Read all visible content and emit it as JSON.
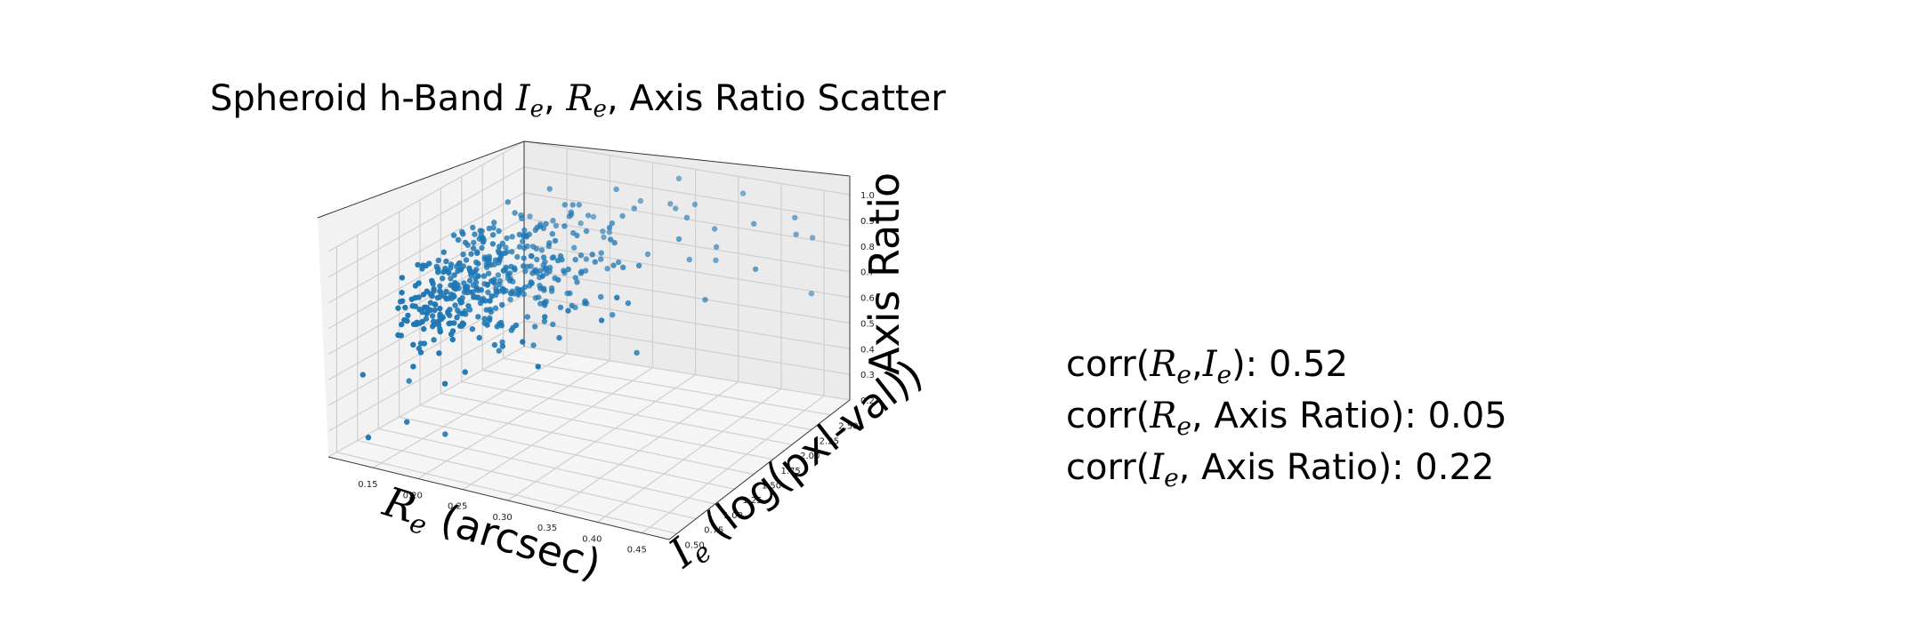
{
  "chart_data": {
    "type": "scatter",
    "projection": "3d",
    "title": "Spheroid h-Band I_e, R_e, Axis Ratio Scatter",
    "title_parts": {
      "prefix": "Spheroid h-Band ",
      "ie_main": "I",
      "ie_sub": "e",
      "sep1": ", ",
      "re_main": "R",
      "re_sub": "e",
      "suffix": ", Axis Ratio Scatter"
    },
    "xlabel": "R_e (arcsec)",
    "xlabel_parts": {
      "main": "R",
      "sub": "e",
      "rest": " (arcsec)"
    },
    "ylabel": "I_e (log(pxl-val))",
    "ylabel_parts": {
      "main": "I",
      "sub": "e",
      "rest": " (log(pxl-val))"
    },
    "zlabel": "Axis Ratio",
    "xlim": [
      0.1,
      0.48
    ],
    "ylim": [
      0.4,
      2.75
    ],
    "zlim": [
      0.2,
      1.0
    ],
    "x_ticks": [
      "0.15",
      "0.20",
      "0.25",
      "0.30",
      "0.35",
      "0.40",
      "0.45"
    ],
    "y_ticks": [
      "0.50",
      "0.75",
      "1.00",
      "1.25",
      "1.50",
      "1.75",
      "2.00",
      "2.25",
      "2.50"
    ],
    "z_ticks": [
      "0.2",
      "0.3",
      "0.4",
      "0.5",
      "0.6",
      "0.7",
      "0.8",
      "0.9",
      "1.0"
    ],
    "grid": true,
    "marker_color": "#1f77b4",
    "generated_points": {
      "count": 460,
      "x_center": 0.17,
      "x_spread": 0.05,
      "y_center": 1.1,
      "y_spread": 0.45,
      "z_center": 0.82,
      "z_spread": 0.1
    },
    "points": [
      [
        0.14,
        0.45,
        0.3
      ],
      [
        0.18,
        0.95,
        0.25
      ],
      [
        0.13,
        1.05,
        0.4
      ],
      [
        0.16,
        0.7,
        0.33
      ],
      [
        0.12,
        0.6,
        0.5
      ],
      [
        0.15,
        2.3,
        0.82
      ],
      [
        0.2,
        2.55,
        0.8
      ],
      [
        0.25,
        2.6,
        0.88
      ],
      [
        0.3,
        2.5,
        0.9
      ],
      [
        0.35,
        2.45,
        0.86
      ],
      [
        0.4,
        2.4,
        0.92
      ],
      [
        0.28,
        2.2,
        0.95
      ],
      [
        0.22,
        2.1,
        0.78
      ],
      [
        0.33,
        2.35,
        0.75
      ],
      [
        0.45,
        2.6,
        0.85
      ],
      [
        0.38,
        2.0,
        0.7
      ],
      [
        0.26,
        1.8,
        0.65
      ],
      [
        0.31,
        1.6,
        0.68
      ],
      [
        0.42,
        2.2,
        0.8
      ],
      [
        0.19,
        1.5,
        0.58
      ],
      [
        0.24,
        1.9,
        0.6
      ],
      [
        0.29,
        2.65,
        0.98
      ],
      [
        0.36,
        2.7,
        0.95
      ],
      [
        0.44,
        2.5,
        0.88
      ]
    ]
  },
  "stats": {
    "lines": [
      {
        "text": "corr(R_e,I_e): 0.52",
        "pre": "corr(",
        "a_main": "R",
        "a_sub": "e",
        "mid": ",",
        "b_main": "I",
        "b_sub": "e",
        "post": "): 0.52"
      },
      {
        "text": "corr(R_e, Axis Ratio): 0.05",
        "pre": "corr(",
        "a_main": "R",
        "a_sub": "e",
        "post": ", Axis Ratio): 0.05"
      },
      {
        "text": "corr(I_e, Axis Ratio): 0.22",
        "pre": "corr(",
        "a_main": "I",
        "a_sub": "e",
        "post": ", Axis Ratio): 0.22"
      }
    ]
  }
}
